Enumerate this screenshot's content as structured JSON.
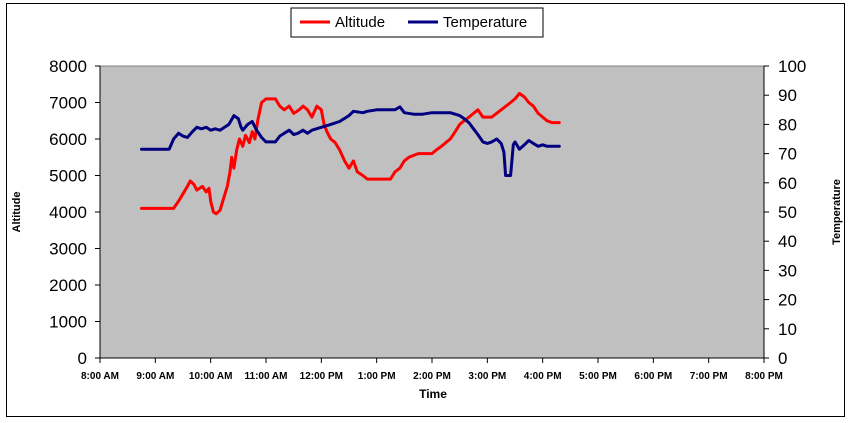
{
  "chart_data": {
    "type": "line",
    "title": "",
    "xlabel": "Time",
    "ylabel": "Altitude",
    "y2label": "Temperature",
    "x_ticks": [
      "8:00 AM",
      "9:00 AM",
      "10:00 AM",
      "11:00 AM",
      "12:00 PM",
      "1:00 PM",
      "2:00 PM",
      "3:00 PM",
      "4:00 PM",
      "5:00 PM",
      "6:00 PM",
      "7:00 PM",
      "8:00 PM"
    ],
    "xlim": [
      8,
      20
    ],
    "ylim": [
      0,
      8000
    ],
    "y_ticks": [
      "0",
      "1000",
      "2000",
      "3000",
      "4000",
      "5000",
      "6000",
      "7000",
      "8000"
    ],
    "y2lim": [
      0,
      100
    ],
    "y2_ticks": [
      "0",
      "10",
      "20",
      "30",
      "40",
      "50",
      "60",
      "70",
      "80",
      "90",
      "100"
    ],
    "plot_background": "#C0C0C0",
    "grid": false,
    "legend": "top-center",
    "series": [
      {
        "name": "Altitude",
        "color": "#FF0000",
        "axis": "left",
        "points": [
          [
            8.75,
            4100
          ],
          [
            9.0,
            4100
          ],
          [
            9.17,
            4100
          ],
          [
            9.25,
            4100
          ],
          [
            9.33,
            4100
          ],
          [
            9.42,
            4300
          ],
          [
            9.5,
            4500
          ],
          [
            9.58,
            4700
          ],
          [
            9.63,
            4850
          ],
          [
            9.7,
            4750
          ],
          [
            9.75,
            4600
          ],
          [
            9.85,
            4700
          ],
          [
            9.92,
            4550
          ],
          [
            9.97,
            4650
          ],
          [
            10.0,
            4300
          ],
          [
            10.05,
            4000
          ],
          [
            10.1,
            3950
          ],
          [
            10.17,
            4050
          ],
          [
            10.22,
            4300
          ],
          [
            10.3,
            4700
          ],
          [
            10.35,
            5100
          ],
          [
            10.38,
            5500
          ],
          [
            10.42,
            5200
          ],
          [
            10.47,
            5700
          ],
          [
            10.52,
            6000
          ],
          [
            10.58,
            5800
          ],
          [
            10.63,
            6100
          ],
          [
            10.7,
            5900
          ],
          [
            10.75,
            6200
          ],
          [
            10.8,
            6000
          ],
          [
            10.85,
            6500
          ],
          [
            10.92,
            7000
          ],
          [
            11.0,
            7100
          ],
          [
            11.17,
            7100
          ],
          [
            11.25,
            6900
          ],
          [
            11.33,
            6800
          ],
          [
            11.42,
            6900
          ],
          [
            11.5,
            6700
          ],
          [
            11.6,
            6800
          ],
          [
            11.67,
            6900
          ],
          [
            11.75,
            6800
          ],
          [
            11.83,
            6600
          ],
          [
            11.92,
            6900
          ],
          [
            12.0,
            6800
          ],
          [
            12.05,
            6400
          ],
          [
            12.1,
            6200
          ],
          [
            12.17,
            6000
          ],
          [
            12.25,
            5900
          ],
          [
            12.33,
            5700
          ],
          [
            12.42,
            5400
          ],
          [
            12.5,
            5200
          ],
          [
            12.58,
            5400
          ],
          [
            12.65,
            5100
          ],
          [
            12.75,
            5000
          ],
          [
            12.83,
            4900
          ],
          [
            13.0,
            4900
          ],
          [
            13.25,
            4900
          ],
          [
            13.33,
            5100
          ],
          [
            13.42,
            5200
          ],
          [
            13.5,
            5400
          ],
          [
            13.58,
            5500
          ],
          [
            13.75,
            5600
          ],
          [
            13.92,
            5600
          ],
          [
            14.0,
            5600
          ],
          [
            14.08,
            5700
          ],
          [
            14.17,
            5800
          ],
          [
            14.25,
            5900
          ],
          [
            14.33,
            6000
          ],
          [
            14.42,
            6200
          ],
          [
            14.5,
            6400
          ],
          [
            14.58,
            6500
          ],
          [
            14.67,
            6600
          ],
          [
            14.75,
            6700
          ],
          [
            14.83,
            6800
          ],
          [
            14.92,
            6600
          ],
          [
            15.08,
            6600
          ],
          [
            15.25,
            6800
          ],
          [
            15.42,
            7000
          ],
          [
            15.5,
            7100
          ],
          [
            15.58,
            7250
          ],
          [
            15.67,
            7150
          ],
          [
            15.75,
            7000
          ],
          [
            15.83,
            6900
          ],
          [
            15.92,
            6700
          ],
          [
            16.0,
            6600
          ],
          [
            16.08,
            6500
          ],
          [
            16.17,
            6450
          ],
          [
            16.3,
            6450
          ]
        ]
      },
      {
        "name": "Temperature",
        "color": "#000080",
        "axis": "right",
        "points": [
          [
            8.75,
            71.5
          ],
          [
            9.0,
            71.5
          ],
          [
            9.17,
            71.5
          ],
          [
            9.25,
            71.5
          ],
          [
            9.33,
            75
          ],
          [
            9.42,
            77
          ],
          [
            9.5,
            76
          ],
          [
            9.58,
            75.5
          ],
          [
            9.67,
            77.5
          ],
          [
            9.75,
            79
          ],
          [
            9.83,
            78.5
          ],
          [
            9.92,
            79
          ],
          [
            10.0,
            78
          ],
          [
            10.08,
            78.5
          ],
          [
            10.17,
            78
          ],
          [
            10.25,
            79
          ],
          [
            10.33,
            80
          ],
          [
            10.42,
            83
          ],
          [
            10.5,
            82
          ],
          [
            10.55,
            79
          ],
          [
            10.58,
            78
          ],
          [
            10.67,
            80
          ],
          [
            10.75,
            81
          ],
          [
            10.83,
            78
          ],
          [
            10.92,
            75.5
          ],
          [
            11.0,
            74
          ],
          [
            11.17,
            74
          ],
          [
            11.25,
            76
          ],
          [
            11.33,
            77
          ],
          [
            11.42,
            78
          ],
          [
            11.5,
            76.5
          ],
          [
            11.58,
            77
          ],
          [
            11.67,
            78
          ],
          [
            11.75,
            77
          ],
          [
            11.83,
            78
          ],
          [
            12.0,
            79
          ],
          [
            12.17,
            80
          ],
          [
            12.33,
            81
          ],
          [
            12.5,
            83
          ],
          [
            12.58,
            84.5
          ],
          [
            12.75,
            84
          ],
          [
            12.83,
            84.5
          ],
          [
            13.0,
            85
          ],
          [
            13.17,
            85
          ],
          [
            13.33,
            85
          ],
          [
            13.42,
            86
          ],
          [
            13.5,
            84
          ],
          [
            13.67,
            83.5
          ],
          [
            13.83,
            83.5
          ],
          [
            14.0,
            84
          ],
          [
            14.17,
            84
          ],
          [
            14.33,
            84
          ],
          [
            14.42,
            83.5
          ],
          [
            14.5,
            83
          ],
          [
            14.58,
            82
          ],
          [
            14.67,
            80.5
          ],
          [
            14.75,
            78.5
          ],
          [
            14.83,
            76.5
          ],
          [
            14.92,
            74
          ],
          [
            15.0,
            73.5
          ],
          [
            15.08,
            74
          ],
          [
            15.17,
            75
          ],
          [
            15.25,
            73.5
          ],
          [
            15.3,
            70.5
          ],
          [
            15.33,
            62.5
          ],
          [
            15.42,
            62.5
          ],
          [
            15.47,
            73
          ],
          [
            15.5,
            74
          ],
          [
            15.58,
            71.5
          ],
          [
            15.67,
            73
          ],
          [
            15.75,
            74.5
          ],
          [
            15.83,
            73.5
          ],
          [
            15.92,
            72.5
          ],
          [
            16.0,
            73
          ],
          [
            16.08,
            72.5
          ],
          [
            16.17,
            72.5
          ],
          [
            16.3,
            72.5
          ]
        ]
      }
    ]
  }
}
